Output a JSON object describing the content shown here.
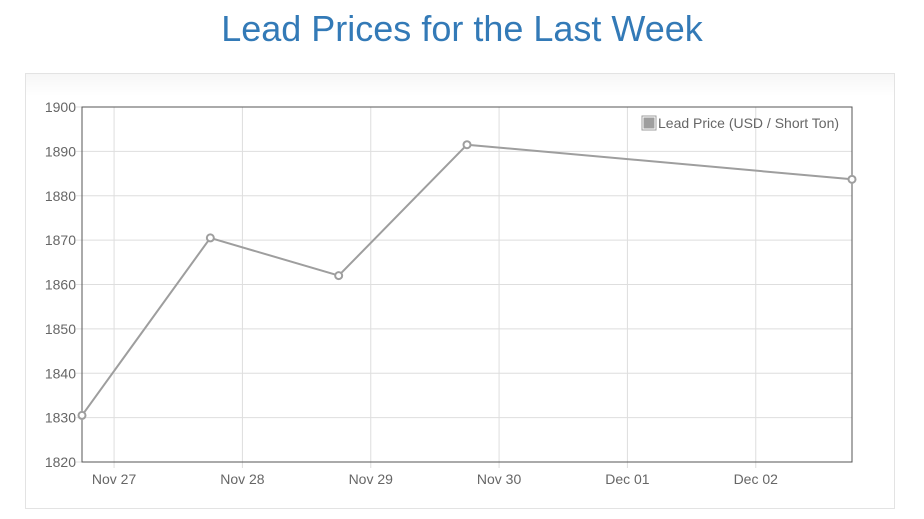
{
  "page": {
    "title": "Lead Prices for the Last Week"
  },
  "chart_data": {
    "type": "line",
    "title": "Lead Prices for the Last Week",
    "x_ticks": [
      "Nov 27",
      "Nov 28",
      "Nov 29",
      "Nov 30",
      "Dec 01",
      "Dec 02"
    ],
    "y_ticks": [
      1820,
      1830,
      1840,
      1850,
      1860,
      1870,
      1880,
      1890,
      1900
    ],
    "ylim": [
      1820,
      1900
    ],
    "xlim": [
      "2018-11-26 18:00",
      "2018-12-02 18:00"
    ],
    "grid": true,
    "legend_position": "top-right",
    "series": [
      {
        "name": "Lead Price (USD / Short Ton)",
        "color": "#9e9e9e",
        "points": [
          {
            "x": "2018-11-26 18:00",
            "y": 1830.5
          },
          {
            "x": "2018-11-27 18:00",
            "y": 1870.5
          },
          {
            "x": "2018-11-28 18:00",
            "y": 1862
          },
          {
            "x": "2018-11-29 18:00",
            "y": 1891.5
          },
          {
            "x": "2018-12-02 18:00",
            "y": 1883.7
          }
        ]
      }
    ]
  }
}
